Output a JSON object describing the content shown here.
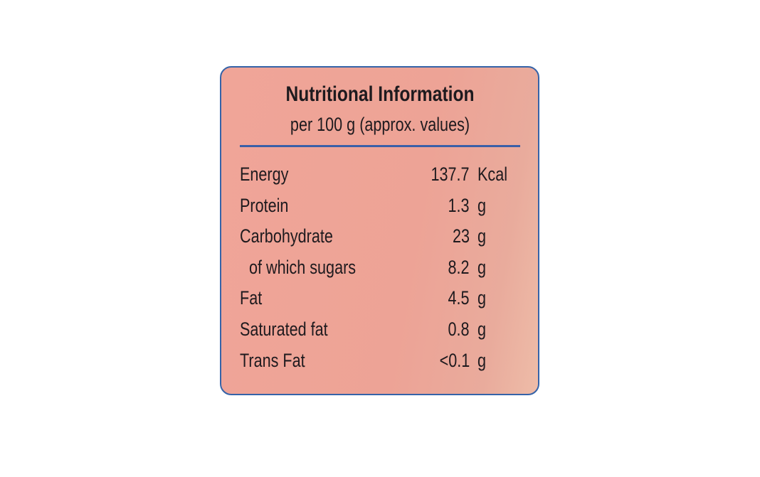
{
  "label": {
    "title": "Nutritional Information",
    "subtitle": "per 100 g (approx. values)",
    "rows": [
      {
        "name": "Energy",
        "value": "137.7",
        "unit": "Kcal"
      },
      {
        "name": "Protein",
        "value": "1.3",
        "unit": "g"
      },
      {
        "name": "Carbohydrate",
        "value": "23",
        "unit": "g"
      },
      {
        "name": "of which sugars",
        "value": "8.2",
        "unit": "g"
      },
      {
        "name": "Fat",
        "value": "4.5",
        "unit": "g"
      },
      {
        "name": "Saturated fat",
        "value": "0.8",
        "unit": "g"
      },
      {
        "name": "Trans Fat",
        "value": "<0.1",
        "unit": "g"
      }
    ]
  }
}
